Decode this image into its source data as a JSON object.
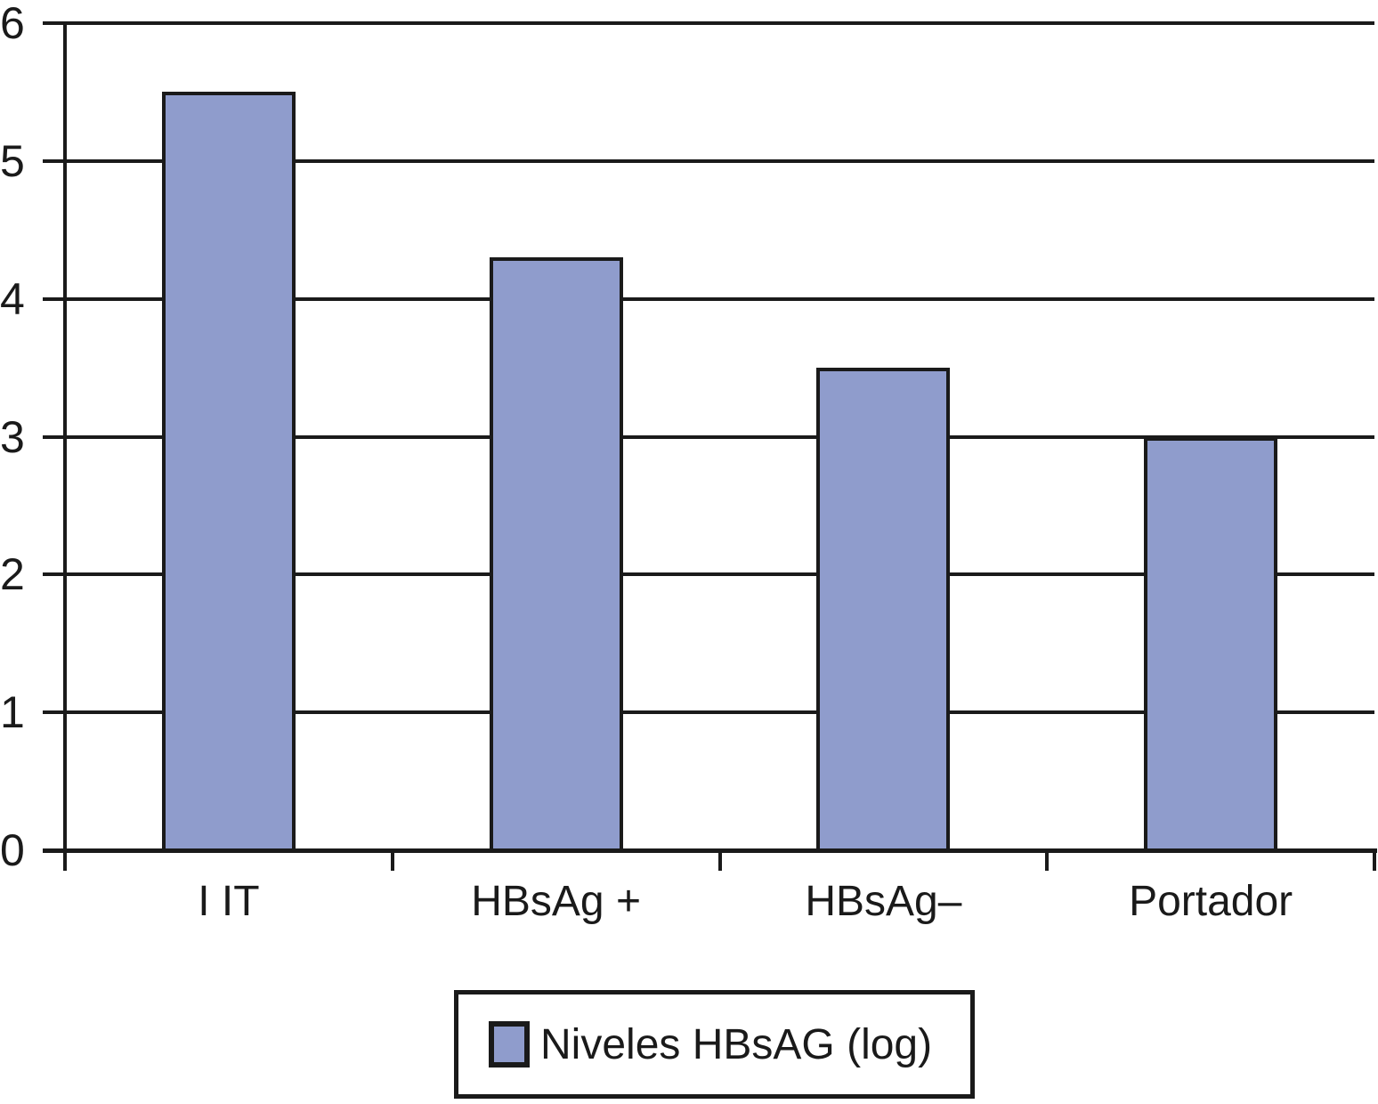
{
  "chart_data": {
    "type": "bar",
    "categories": [
      "I IT",
      "HBsAg +",
      "HBsAg–",
      "Portador"
    ],
    "values": [
      5.5,
      4.3,
      3.5,
      3.0
    ],
    "series_name": "Niveles HBsAG (log)",
    "title": "",
    "xlabel": "",
    "ylabel": "",
    "ylim": [
      0,
      6
    ],
    "yticks": [
      0,
      1,
      2,
      3,
      4,
      5,
      6
    ],
    "grid": true,
    "legend_position": "bottom-center",
    "bar_color": "#8F9CCC",
    "bar_border_color": "#1a1a1a",
    "line_color": "#1a1a1a",
    "background_color": "#ffffff"
  },
  "legend": {
    "label": "Niveles HBsAG (log)"
  }
}
